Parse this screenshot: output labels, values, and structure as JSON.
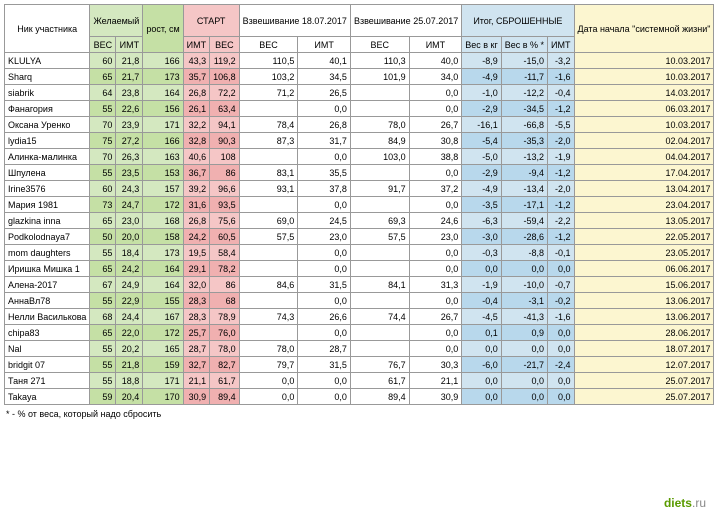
{
  "headers": {
    "nick": "Ник участника",
    "desired": "Желаемый",
    "height": "рост, см",
    "start": "СТАРТ",
    "w1": "Взвешивание 18.07.2017",
    "w2": "Взвешивание 25.07.2017",
    "result": "Итог, СБРОШЕННЫЕ",
    "startdate": "Дата начала \"системной жизни\"",
    "ves": "ВЕС",
    "imt": "ИМТ",
    "veskg": "Вес в кг",
    "vespct": "Вес в % *",
    "footnote": "* - % от веса, который надо сбросить"
  },
  "colors": {
    "green1": "#d4e8c0",
    "green2": "#c5e0a5",
    "pink1": "#f5c6c6",
    "pink2": "#f0b0b0",
    "blue1": "#d0e4f0",
    "blue2": "#b8d8ec",
    "yellow1": "#fcf6d0"
  },
  "rows": [
    {
      "n": "KLULYA",
      "dv": "60",
      "di": "21,8",
      "h": "166",
      "si": "43,3",
      "sv": "119,2",
      "w1v": "110,5",
      "w1i": "40,1",
      "w2v": "110,3",
      "w2i": "40,0",
      "rk": "-8,9",
      "rp": "-15,0",
      "ri": "-3,2",
      "d": "10.03.2017"
    },
    {
      "n": "Sharq",
      "dv": "65",
      "di": "21,7",
      "h": "173",
      "si": "35,7",
      "sv": "106,8",
      "w1v": "103,2",
      "w1i": "34,5",
      "w2v": "101,9",
      "w2i": "34,0",
      "rk": "-4,9",
      "rp": "-11,7",
      "ri": "-1,6",
      "d": "10.03.2017"
    },
    {
      "n": "siabrik",
      "dv": "64",
      "di": "23,8",
      "h": "164",
      "si": "26,8",
      "sv": "72,2",
      "w1v": "71,2",
      "w1i": "26,5",
      "w2v": "",
      "w2i": "0,0",
      "rk": "-1,0",
      "rp": "-12,2",
      "ri": "-0,4",
      "d": "14.03.2017"
    },
    {
      "n": "Фанагория",
      "dv": "55",
      "di": "22,6",
      "h": "156",
      "si": "26,1",
      "sv": "63,4",
      "w1v": "",
      "w1i": "0,0",
      "w2v": "",
      "w2i": "0,0",
      "rk": "-2,9",
      "rp": "-34,5",
      "ri": "-1,2",
      "d": "06.03.2017"
    },
    {
      "n": "Оксана Уренко",
      "dv": "70",
      "di": "23,9",
      "h": "171",
      "si": "32,2",
      "sv": "94,1",
      "w1v": "78,4",
      "w1i": "26,8",
      "w2v": "78,0",
      "w2i": "26,7",
      "rk": "-16,1",
      "rp": "-66,8",
      "ri": "-5,5",
      "d": "10.03.2017"
    },
    {
      "n": "lydia15",
      "dv": "75",
      "di": "27,2",
      "h": "166",
      "si": "32,8",
      "sv": "90,3",
      "w1v": "87,3",
      "w1i": "31,7",
      "w2v": "84,9",
      "w2i": "30,8",
      "rk": "-5,4",
      "rp": "-35,3",
      "ri": "-2,0",
      "d": "02.04.2017"
    },
    {
      "n": "Алинка-малинка",
      "dv": "70",
      "di": "26,3",
      "h": "163",
      "si": "40,6",
      "sv": "108",
      "w1v": "",
      "w1i": "0,0",
      "w2v": "103,0",
      "w2i": "38,8",
      "rk": "-5,0",
      "rp": "-13,2",
      "ri": "-1,9",
      "d": "04.04.2017"
    },
    {
      "n": "Шпулена",
      "dv": "55",
      "di": "23,5",
      "h": "153",
      "si": "36,7",
      "sv": "86",
      "w1v": "83,1",
      "w1i": "35,5",
      "w2v": "",
      "w2i": "0,0",
      "rk": "-2,9",
      "rp": "-9,4",
      "ri": "-1,2",
      "d": "17.04.2017"
    },
    {
      "n": "Irine3576",
      "dv": "60",
      "di": "24,3",
      "h": "157",
      "si": "39,2",
      "sv": "96,6",
      "w1v": "93,1",
      "w1i": "37,8",
      "w2v": "91,7",
      "w2i": "37,2",
      "rk": "-4,9",
      "rp": "-13,4",
      "ri": "-2,0",
      "d": "13.04.2017"
    },
    {
      "n": "Мария 1981",
      "dv": "73",
      "di": "24,7",
      "h": "172",
      "si": "31,6",
      "sv": "93,5",
      "w1v": "",
      "w1i": "0,0",
      "w2v": "",
      "w2i": "0,0",
      "rk": "-3,5",
      "rp": "-17,1",
      "ri": "-1,2",
      "d": "23.04.2017"
    },
    {
      "n": "glazkina inna",
      "dv": "65",
      "di": "23,0",
      "h": "168",
      "si": "26,8",
      "sv": "75,6",
      "w1v": "69,0",
      "w1i": "24,5",
      "w2v": "69,3",
      "w2i": "24,6",
      "rk": "-6,3",
      "rp": "-59,4",
      "ri": "-2,2",
      "d": "13.05.2017"
    },
    {
      "n": "Podkolodnaya7",
      "dv": "50",
      "di": "20,0",
      "h": "158",
      "si": "24,2",
      "sv": "60,5",
      "w1v": "57,5",
      "w1i": "23,0",
      "w2v": "57,5",
      "w2i": "23,0",
      "rk": "-3,0",
      "rp": "-28,6",
      "ri": "-1,2",
      "d": "22.05.2017"
    },
    {
      "n": "mom daughters",
      "dv": "55",
      "di": "18,4",
      "h": "173",
      "si": "19,5",
      "sv": "58,4",
      "w1v": "",
      "w1i": "0,0",
      "w2v": "",
      "w2i": "0,0",
      "rk": "-0,3",
      "rp": "-8,8",
      "ri": "-0,1",
      "d": "23.05.2017"
    },
    {
      "n": "Иришка Мишка 1",
      "dv": "65",
      "di": "24,2",
      "h": "164",
      "si": "29,1",
      "sv": "78,2",
      "w1v": "",
      "w1i": "0,0",
      "w2v": "",
      "w2i": "0,0",
      "rk": "0,0",
      "rp": "0,0",
      "ri": "0,0",
      "d": "06.06.2017"
    },
    {
      "n": "Алена-2017",
      "dv": "67",
      "di": "24,9",
      "h": "164",
      "si": "32,0",
      "sv": "86",
      "w1v": "84,6",
      "w1i": "31,5",
      "w2v": "84,1",
      "w2i": "31,3",
      "rk": "-1,9",
      "rp": "-10,0",
      "ri": "-0,7",
      "d": "15.06.2017"
    },
    {
      "n": "АннаВл78",
      "dv": "55",
      "di": "22,9",
      "h": "155",
      "si": "28,3",
      "sv": "68",
      "w1v": "",
      "w1i": "0,0",
      "w2v": "",
      "w2i": "0,0",
      "rk": "-0,4",
      "rp": "-3,1",
      "ri": "-0,2",
      "d": "13.06.2017"
    },
    {
      "n": "Нелли Василькова",
      "dv": "68",
      "di": "24,4",
      "h": "167",
      "si": "28,3",
      "sv": "78,9",
      "w1v": "74,3",
      "w1i": "26,6",
      "w2v": "74,4",
      "w2i": "26,7",
      "rk": "-4,5",
      "rp": "-41,3",
      "ri": "-1,6",
      "d": "13.06.2017"
    },
    {
      "n": "chipa83",
      "dv": "65",
      "di": "22,0",
      "h": "172",
      "si": "25,7",
      "sv": "76,0",
      "w1v": "",
      "w1i": "0,0",
      "w2v": "",
      "w2i": "0,0",
      "rk": "0,1",
      "rp": "0,9",
      "ri": "0,0",
      "d": "28.06.2017"
    },
    {
      "n": "Nal",
      "dv": "55",
      "di": "20,2",
      "h": "165",
      "si": "28,7",
      "sv": "78,0",
      "w1v": "78,0",
      "w1i": "28,7",
      "w2v": "",
      "w2i": "0,0",
      "rk": "0,0",
      "rp": "0,0",
      "ri": "0,0",
      "d": "18.07.2017"
    },
    {
      "n": "bridgit 07",
      "dv": "55",
      "di": "21,8",
      "h": "159",
      "si": "32,7",
      "sv": "82,7",
      "w1v": "79,7",
      "w1i": "31,5",
      "w2v": "76,7",
      "w2i": "30,3",
      "rk": "-6,0",
      "rp": "-21,7",
      "ri": "-2,4",
      "d": "12.07.2017"
    },
    {
      "n": "Таня 271",
      "dv": "55",
      "di": "18,8",
      "h": "171",
      "si": "21,1",
      "sv": "61,7",
      "w1v": "0,0",
      "w1i": "0,0",
      "w2v": "61,7",
      "w2i": "21,1",
      "rk": "0,0",
      "rp": "0,0",
      "ri": "0,0",
      "d": "25.07.2017"
    },
    {
      "n": "Takaya",
      "dv": "59",
      "di": "20,4",
      "h": "170",
      "si": "30,9",
      "sv": "89,4",
      "w1v": "0,0",
      "w1i": "0,0",
      "w2v": "89,4",
      "w2i": "30,9",
      "rk": "0,0",
      "rp": "0,0",
      "ri": "0,0",
      "d": "25.07.2017"
    }
  ],
  "watermark": {
    "a": "diets",
    "b": ".ru"
  }
}
